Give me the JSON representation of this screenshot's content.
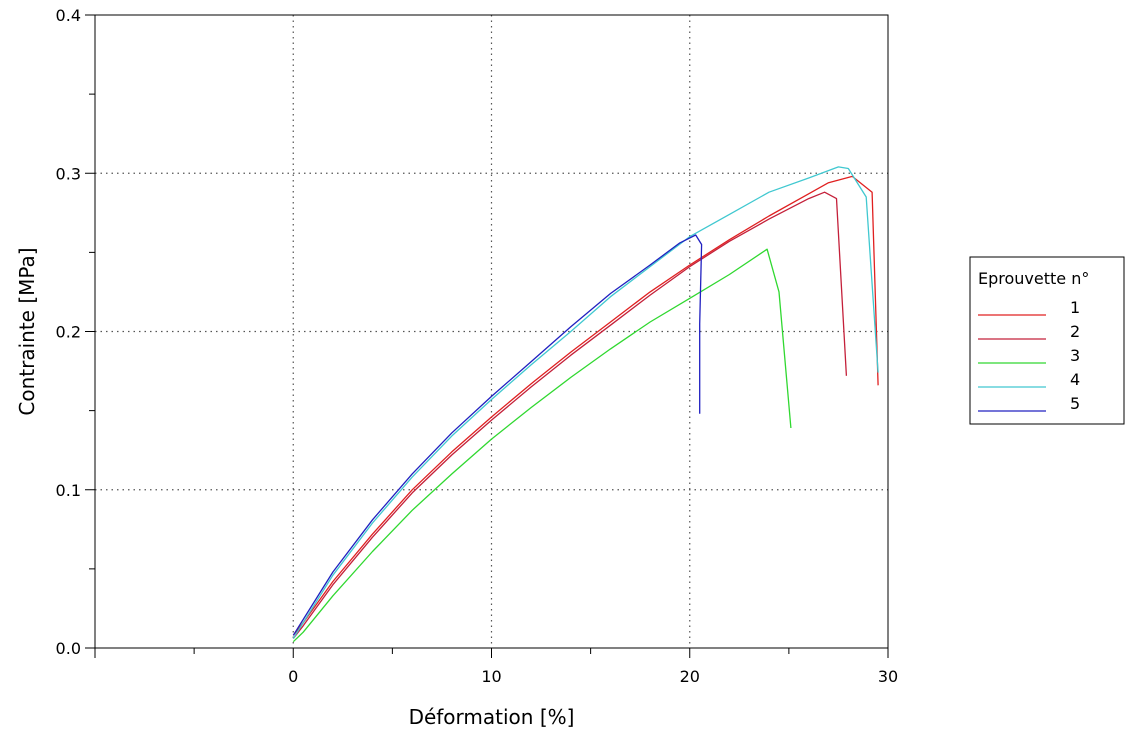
{
  "chart_data": {
    "type": "line",
    "title": "",
    "xlabel": "Déformation [%]",
    "ylabel": "Contrainte [MPa]",
    "xlim": [
      -10,
      30
    ],
    "ylim": [
      0,
      0.4
    ],
    "x_ticks": [
      0,
      10,
      20,
      30
    ],
    "x_tick_labels": [
      "0",
      "10",
      "20",
      "30"
    ],
    "y_ticks": [
      0.0,
      0.1,
      0.2,
      0.3,
      0.4
    ],
    "y_tick_labels": [
      "0.0",
      "0.1",
      "0.2",
      "0.3",
      "0.4"
    ],
    "grid": true,
    "legend": {
      "title": "Eprouvette n°",
      "placement": "right"
    },
    "series": [
      {
        "name": "1",
        "color": "#e02020",
        "points": [
          [
            0,
            0.008
          ],
          [
            0.5,
            0.016
          ],
          [
            2,
            0.042
          ],
          [
            4,
            0.072
          ],
          [
            6,
            0.1
          ],
          [
            8,
            0.124
          ],
          [
            10,
            0.146
          ],
          [
            12,
            0.167
          ],
          [
            14,
            0.187
          ],
          [
            16,
            0.206
          ],
          [
            18,
            0.225
          ],
          [
            20,
            0.242
          ],
          [
            22,
            0.258
          ],
          [
            24,
            0.273
          ],
          [
            26,
            0.287
          ],
          [
            27,
            0.294
          ],
          [
            28.2,
            0.298
          ],
          [
            29.2,
            0.288
          ],
          [
            29.5,
            0.166
          ]
        ]
      },
      {
        "name": "2",
        "color": "#c4203a",
        "points": [
          [
            0,
            0.006
          ],
          [
            0.5,
            0.014
          ],
          [
            2,
            0.04
          ],
          [
            4,
            0.07
          ],
          [
            6,
            0.098
          ],
          [
            8,
            0.122
          ],
          [
            10,
            0.144
          ],
          [
            12,
            0.165
          ],
          [
            14,
            0.185
          ],
          [
            16,
            0.204
          ],
          [
            18,
            0.223
          ],
          [
            20,
            0.241
          ],
          [
            22,
            0.257
          ],
          [
            24,
            0.271
          ],
          [
            26,
            0.284
          ],
          [
            26.8,
            0.288
          ],
          [
            27.4,
            0.284
          ],
          [
            27.9,
            0.172
          ]
        ]
      },
      {
        "name": "3",
        "color": "#30d830",
        "points": [
          [
            0,
            0.004
          ],
          [
            0.5,
            0.01
          ],
          [
            2,
            0.033
          ],
          [
            4,
            0.061
          ],
          [
            6,
            0.087
          ],
          [
            8,
            0.11
          ],
          [
            10,
            0.132
          ],
          [
            12,
            0.152
          ],
          [
            14,
            0.171
          ],
          [
            16,
            0.189
          ],
          [
            18,
            0.206
          ],
          [
            20,
            0.221
          ],
          [
            22,
            0.236
          ],
          [
            23.9,
            0.252
          ],
          [
            24.5,
            0.225
          ],
          [
            25.1,
            0.139
          ]
        ]
      },
      {
        "name": "4",
        "color": "#40c8d0",
        "points": [
          [
            0,
            0.006
          ],
          [
            0.5,
            0.016
          ],
          [
            2,
            0.046
          ],
          [
            4,
            0.079
          ],
          [
            6,
            0.108
          ],
          [
            8,
            0.134
          ],
          [
            10,
            0.157
          ],
          [
            12,
            0.179
          ],
          [
            14,
            0.2
          ],
          [
            16,
            0.222
          ],
          [
            18,
            0.241
          ],
          [
            20,
            0.26
          ],
          [
            22,
            0.274
          ],
          [
            24,
            0.288
          ],
          [
            26,
            0.297
          ],
          [
            27.5,
            0.304
          ],
          [
            28,
            0.303
          ],
          [
            28.9,
            0.285
          ],
          [
            29.5,
            0.174
          ]
        ]
      },
      {
        "name": "5",
        "color": "#2020c0",
        "points": [
          [
            0,
            0.008
          ],
          [
            0.5,
            0.018
          ],
          [
            2,
            0.048
          ],
          [
            4,
            0.081
          ],
          [
            6,
            0.11
          ],
          [
            8,
            0.136
          ],
          [
            10,
            0.159
          ],
          [
            12,
            0.181
          ],
          [
            14,
            0.203
          ],
          [
            16,
            0.224
          ],
          [
            18,
            0.242
          ],
          [
            19.5,
            0.256
          ],
          [
            20.3,
            0.261
          ],
          [
            20.6,
            0.255
          ],
          [
            20.5,
            0.205
          ],
          [
            20.5,
            0.148
          ]
        ]
      }
    ]
  }
}
